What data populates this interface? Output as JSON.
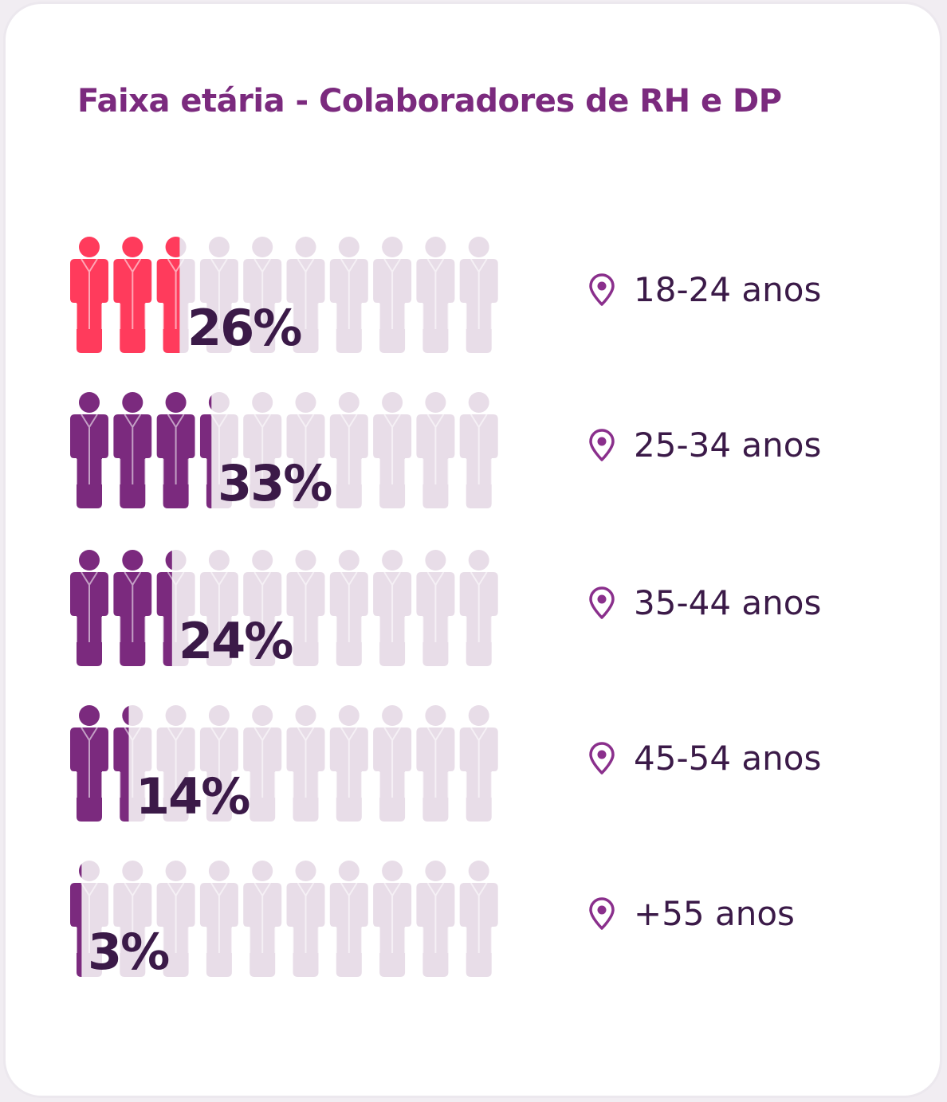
{
  "title": "Faixa etária - Colaboradores de RH e DP",
  "colors": {
    "title": "#7b2a7e",
    "text": "#3b1a48",
    "first_row": "#ff3b5c",
    "highlight": "#7b2a7e",
    "empty": "#e8dde8",
    "pin": "#8a2f8c",
    "card_border": "#ece8ee"
  },
  "icons": {
    "person": "person-icon",
    "location": "location-pin-icon"
  },
  "chart_data": {
    "type": "pictogram",
    "icons_per_row": 10,
    "categories": [
      "18-24 anos",
      "25-34 anos",
      "35-44 anos",
      "45-54 anos",
      "+55 anos"
    ],
    "values": [
      26,
      33,
      24,
      14,
      3
    ],
    "value_labels": [
      "26%",
      "33%",
      "24%",
      "14%",
      "3%"
    ],
    "unit": "%",
    "title": "Faixa etária - Colaboradores de RH e DP"
  }
}
